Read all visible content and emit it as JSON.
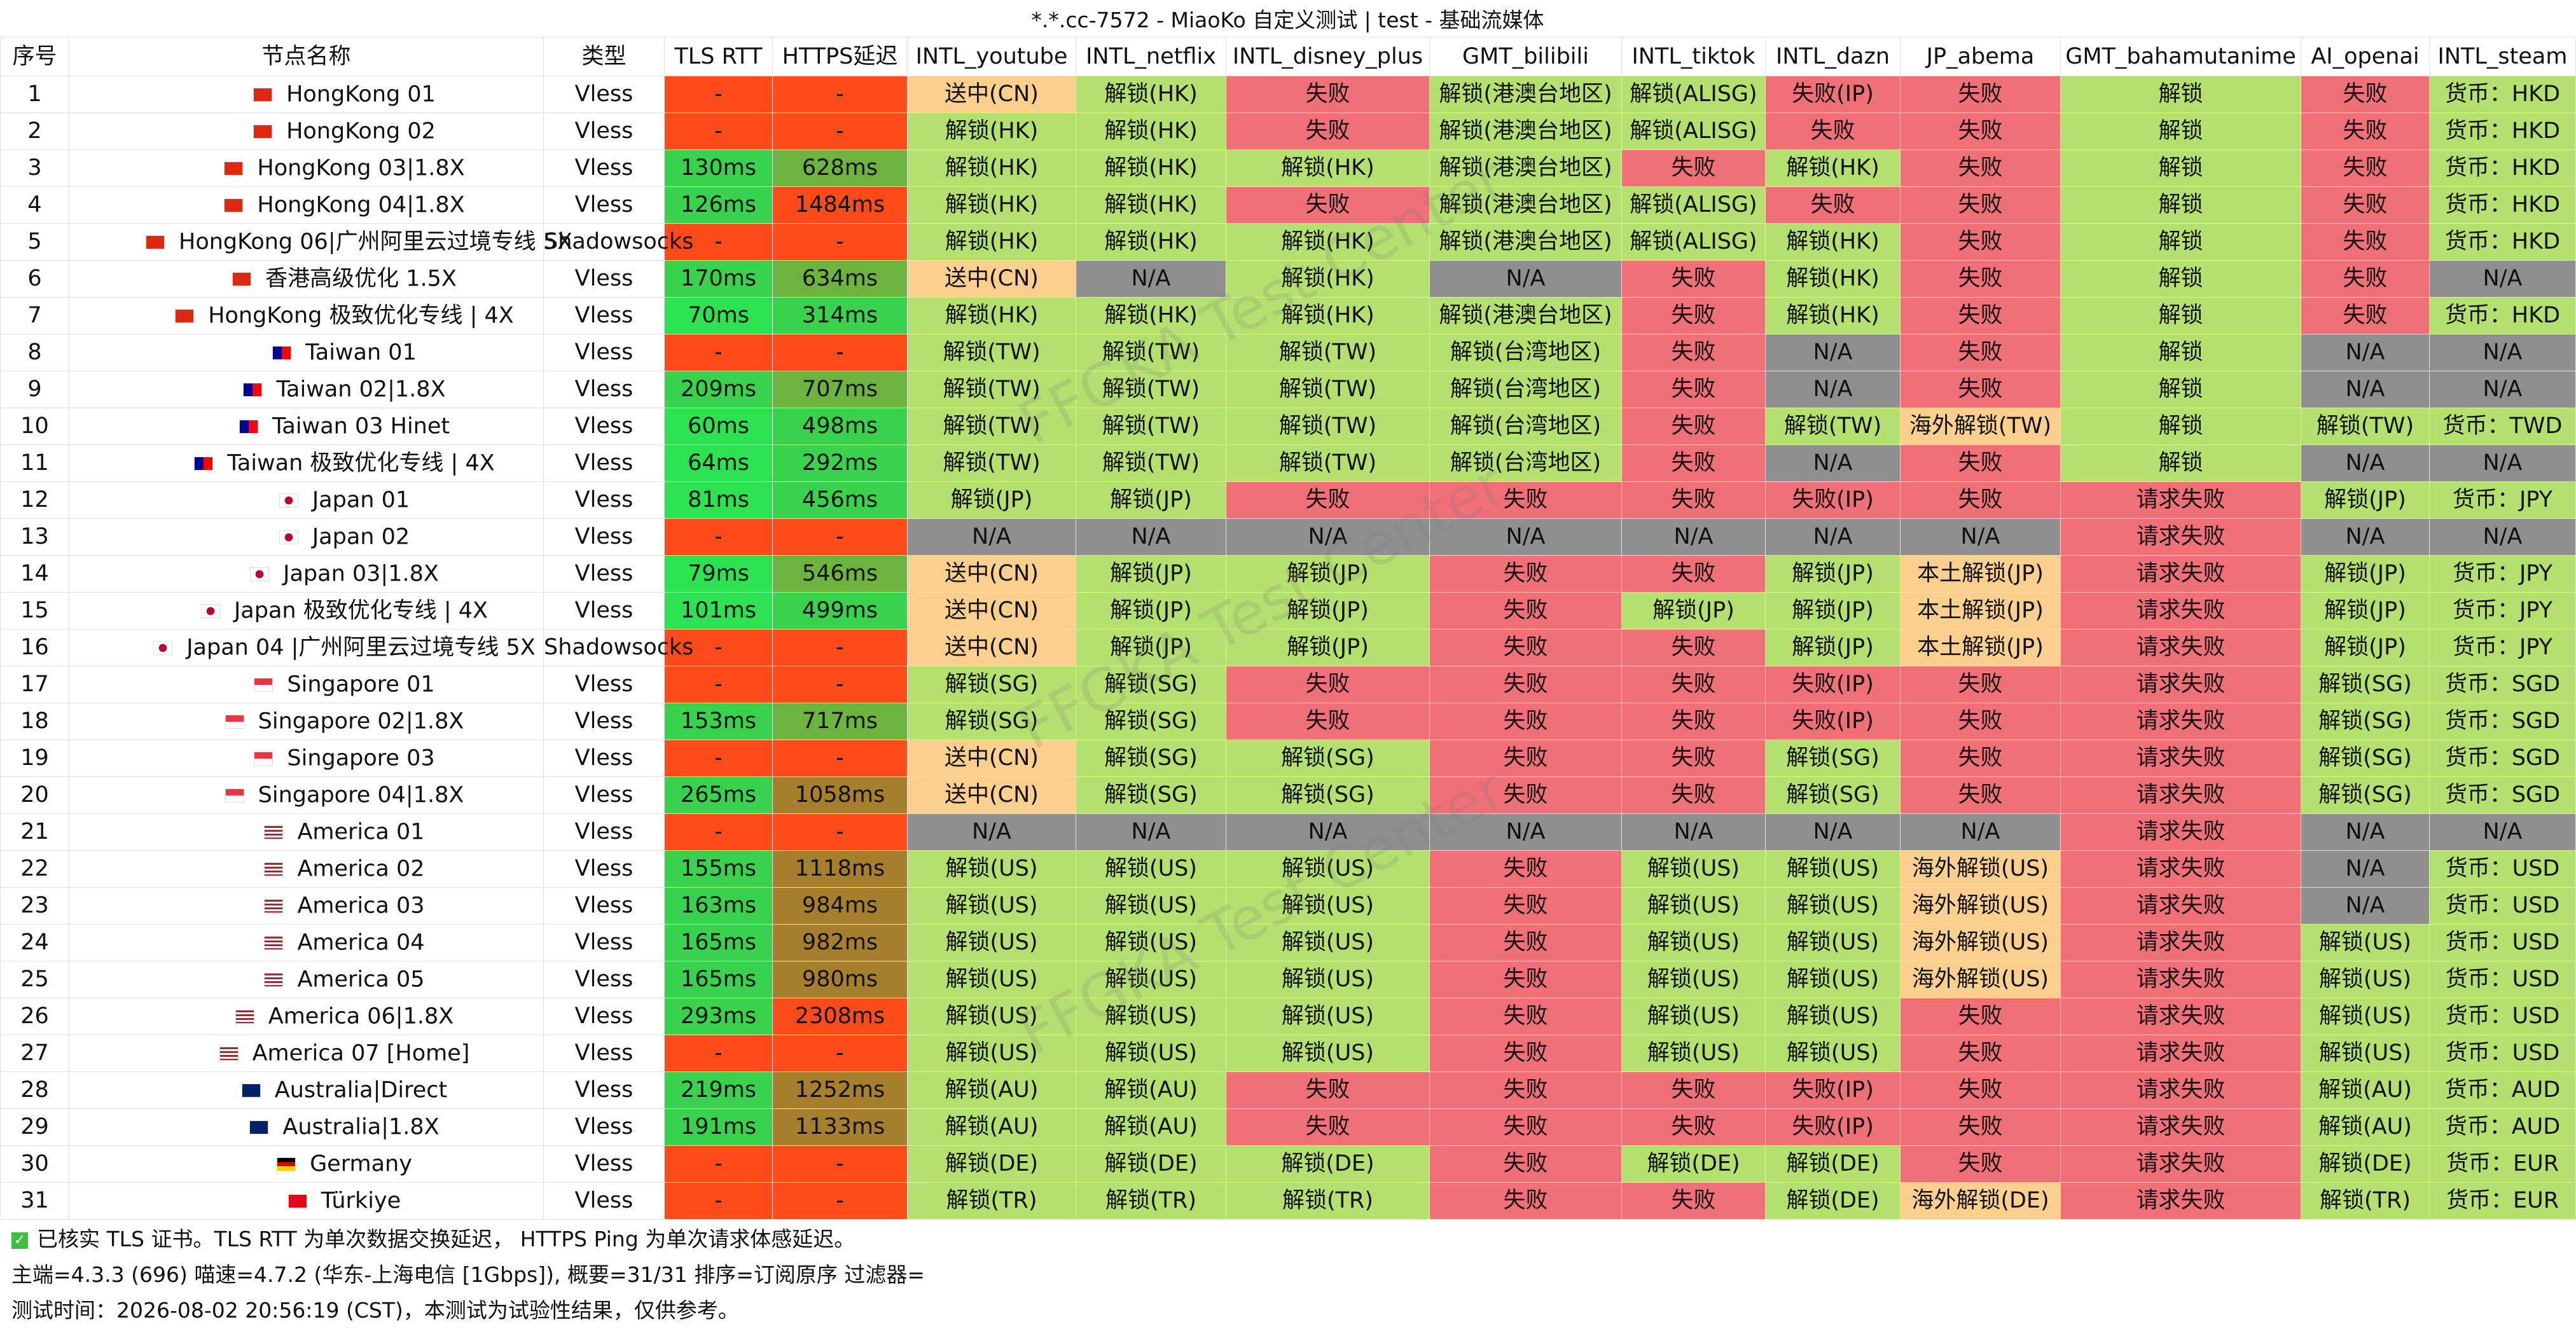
{
  "window": {
    "title": "*.*.cc-7572 - MiaoKo 自定义测试 | test - 基础流媒体"
  },
  "table": {
    "columns": [
      "序号",
      "节点名称",
      "类型",
      "TLS RTT",
      "HTTPS延迟",
      "INTL_youtube",
      "INTL_netflix",
      "INTL_disney_plus",
      "GMT_bilibili",
      "INTL_tiktok",
      "INTL_dazn",
      "JP_abema",
      "GMT_bahamutanime",
      "AI_openai",
      "INTL_steam"
    ],
    "rows": [
      {
        "idx": "1",
        "flag": "hk",
        "name": "HongKong 01",
        "type": "Vless",
        "tls": "-",
        "https": "-",
        "yt": "送中(CN)",
        "nf": "解锁(HK)",
        "dp": "失败",
        "bili": "解锁(港澳台地区)",
        "tt": "解锁(ALISG)",
        "dazn": "失败(IP)",
        "abema": "失败",
        "baha": "解锁",
        "ai": "失败",
        "steam": "货币：HKD"
      },
      {
        "idx": "2",
        "flag": "hk",
        "name": "HongKong 02",
        "type": "Vless",
        "tls": "-",
        "https": "-",
        "yt": "解锁(HK)",
        "nf": "解锁(HK)",
        "dp": "失败",
        "bili": "解锁(港澳台地区)",
        "tt": "解锁(ALISG)",
        "dazn": "失败",
        "abema": "失败",
        "baha": "解锁",
        "ai": "失败",
        "steam": "货币：HKD"
      },
      {
        "idx": "3",
        "flag": "hk",
        "name": "HongKong 03|1.8X",
        "type": "Vless",
        "tls": "130ms",
        "https": "628ms",
        "yt": "解锁(HK)",
        "nf": "解锁(HK)",
        "dp": "解锁(HK)",
        "bili": "解锁(港澳台地区)",
        "tt": "失败",
        "dazn": "解锁(HK)",
        "abema": "失败",
        "baha": "解锁",
        "ai": "失败",
        "steam": "货币：HKD"
      },
      {
        "idx": "4",
        "flag": "hk",
        "name": "HongKong 04|1.8X",
        "type": "Vless",
        "tls": "126ms",
        "https": "1484ms",
        "yt": "解锁(HK)",
        "nf": "解锁(HK)",
        "dp": "失败",
        "bili": "解锁(港澳台地区)",
        "tt": "解锁(ALISG)",
        "dazn": "失败",
        "abema": "失败",
        "baha": "解锁",
        "ai": "失败",
        "steam": "货币：HKD"
      },
      {
        "idx": "5",
        "flag": "hk",
        "name": "HongKong 06|广州阿里云过境专线 5X",
        "type": "Shadowsocks",
        "tls": "-",
        "https": "-",
        "yt": "解锁(HK)",
        "nf": "解锁(HK)",
        "dp": "解锁(HK)",
        "bili": "解锁(港澳台地区)",
        "tt": "解锁(ALISG)",
        "dazn": "解锁(HK)",
        "abema": "失败",
        "baha": "解锁",
        "ai": "失败",
        "steam": "货币：HKD"
      },
      {
        "idx": "6",
        "flag": "hk",
        "name": "香港高级优化 1.5X",
        "type": "Vless",
        "tls": "170ms",
        "https": "634ms",
        "yt": "送中(CN)",
        "nf": "N/A",
        "dp": "解锁(HK)",
        "bili": "N/A",
        "tt": "失败",
        "dazn": "解锁(HK)",
        "abema": "失败",
        "baha": "解锁",
        "ai": "失败",
        "steam": "N/A"
      },
      {
        "idx": "7",
        "flag": "hk",
        "name": "HongKong 极致优化专线 | 4X",
        "type": "Vless",
        "tls": "70ms",
        "https": "314ms",
        "yt": "解锁(HK)",
        "nf": "解锁(HK)",
        "dp": "解锁(HK)",
        "bili": "解锁(港澳台地区)",
        "tt": "失败",
        "dazn": "解锁(HK)",
        "abema": "失败",
        "baha": "解锁",
        "ai": "失败",
        "steam": "货币：HKD"
      },
      {
        "idx": "8",
        "flag": "tw",
        "name": "Taiwan 01",
        "type": "Vless",
        "tls": "-",
        "https": "-",
        "yt": "解锁(TW)",
        "nf": "解锁(TW)",
        "dp": "解锁(TW)",
        "bili": "解锁(台湾地区)",
        "tt": "失败",
        "dazn": "N/A",
        "abema": "失败",
        "baha": "解锁",
        "ai": "N/A",
        "steam": "N/A"
      },
      {
        "idx": "9",
        "flag": "tw",
        "name": "Taiwan 02|1.8X",
        "type": "Vless",
        "tls": "209ms",
        "https": "707ms",
        "yt": "解锁(TW)",
        "nf": "解锁(TW)",
        "dp": "解锁(TW)",
        "bili": "解锁(台湾地区)",
        "tt": "失败",
        "dazn": "N/A",
        "abema": "失败",
        "baha": "解锁",
        "ai": "N/A",
        "steam": "N/A"
      },
      {
        "idx": "10",
        "flag": "tw",
        "name": "Taiwan 03 Hinet",
        "type": "Vless",
        "tls": "60ms",
        "https": "498ms",
        "yt": "解锁(TW)",
        "nf": "解锁(TW)",
        "dp": "解锁(TW)",
        "bili": "解锁(台湾地区)",
        "tt": "失败",
        "dazn": "解锁(TW)",
        "abema": "海外解锁(TW)",
        "baha": "解锁",
        "ai": "解锁(TW)",
        "steam": "货币：TWD"
      },
      {
        "idx": "11",
        "flag": "tw",
        "name": "Taiwan 极致优化专线 | 4X",
        "type": "Vless",
        "tls": "64ms",
        "https": "292ms",
        "yt": "解锁(TW)",
        "nf": "解锁(TW)",
        "dp": "解锁(TW)",
        "bili": "解锁(台湾地区)",
        "tt": "失败",
        "dazn": "N/A",
        "abema": "失败",
        "baha": "解锁",
        "ai": "N/A",
        "steam": "N/A"
      },
      {
        "idx": "12",
        "flag": "jp",
        "name": "Japan 01",
        "type": "Vless",
        "tls": "81ms",
        "https": "456ms",
        "yt": "解锁(JP)",
        "nf": "解锁(JP)",
        "dp": "失败",
        "bili": "失败",
        "tt": "失败",
        "dazn": "失败(IP)",
        "abema": "失败",
        "baha": "请求失败",
        "ai": "解锁(JP)",
        "steam": "货币：JPY"
      },
      {
        "idx": "13",
        "flag": "jp",
        "name": "Japan 02",
        "type": "Vless",
        "tls": "-",
        "https": "-",
        "yt": "N/A",
        "nf": "N/A",
        "dp": "N/A",
        "bili": "N/A",
        "tt": "N/A",
        "dazn": "N/A",
        "abema": "N/A",
        "baha": "请求失败",
        "ai": "N/A",
        "steam": "N/A"
      },
      {
        "idx": "14",
        "flag": "jp",
        "name": "Japan 03|1.8X",
        "type": "Vless",
        "tls": "79ms",
        "https": "546ms",
        "yt": "送中(CN)",
        "nf": "解锁(JP)",
        "dp": "解锁(JP)",
        "bili": "失败",
        "tt": "失败",
        "dazn": "解锁(JP)",
        "abema": "本土解锁(JP)",
        "baha": "请求失败",
        "ai": "解锁(JP)",
        "steam": "货币：JPY"
      },
      {
        "idx": "15",
        "flag": "jp",
        "name": "Japan 极致优化专线 | 4X",
        "type": "Vless",
        "tls": "101ms",
        "https": "499ms",
        "yt": "送中(CN)",
        "nf": "解锁(JP)",
        "dp": "解锁(JP)",
        "bili": "失败",
        "tt": "解锁(JP)",
        "dazn": "解锁(JP)",
        "abema": "本土解锁(JP)",
        "baha": "请求失败",
        "ai": "解锁(JP)",
        "steam": "货币：JPY"
      },
      {
        "idx": "16",
        "flag": "jp",
        "name": "Japan 04 |广州阿里云过境专线 5X",
        "type": "Shadowsocks",
        "tls": "-",
        "https": "-",
        "yt": "送中(CN)",
        "nf": "解锁(JP)",
        "dp": "解锁(JP)",
        "bili": "失败",
        "tt": "失败",
        "dazn": "解锁(JP)",
        "abema": "本土解锁(JP)",
        "baha": "请求失败",
        "ai": "解锁(JP)",
        "steam": "货币：JPY"
      },
      {
        "idx": "17",
        "flag": "sg",
        "name": "Singapore 01",
        "type": "Vless",
        "tls": "-",
        "https": "-",
        "yt": "解锁(SG)",
        "nf": "解锁(SG)",
        "dp": "失败",
        "bili": "失败",
        "tt": "失败",
        "dazn": "失败(IP)",
        "abema": "失败",
        "baha": "请求失败",
        "ai": "解锁(SG)",
        "steam": "货币：SGD"
      },
      {
        "idx": "18",
        "flag": "sg",
        "name": "Singapore 02|1.8X",
        "type": "Vless",
        "tls": "153ms",
        "https": "717ms",
        "yt": "解锁(SG)",
        "nf": "解锁(SG)",
        "dp": "失败",
        "bili": "失败",
        "tt": "失败",
        "dazn": "失败(IP)",
        "abema": "失败",
        "baha": "请求失败",
        "ai": "解锁(SG)",
        "steam": "货币：SGD"
      },
      {
        "idx": "19",
        "flag": "sg",
        "name": "Singapore 03",
        "type": "Vless",
        "tls": "-",
        "https": "-",
        "yt": "送中(CN)",
        "nf": "解锁(SG)",
        "dp": "解锁(SG)",
        "bili": "失败",
        "tt": "失败",
        "dazn": "解锁(SG)",
        "abema": "失败",
        "baha": "请求失败",
        "ai": "解锁(SG)",
        "steam": "货币：SGD"
      },
      {
        "idx": "20",
        "flag": "sg",
        "name": "Singapore 04|1.8X",
        "type": "Vless",
        "tls": "265ms",
        "https": "1058ms",
        "yt": "送中(CN)",
        "nf": "解锁(SG)",
        "dp": "解锁(SG)",
        "bili": "失败",
        "tt": "失败",
        "dazn": "解锁(SG)",
        "abema": "失败",
        "baha": "请求失败",
        "ai": "解锁(SG)",
        "steam": "货币：SGD"
      },
      {
        "idx": "21",
        "flag": "us",
        "name": "America 01",
        "type": "Vless",
        "tls": "-",
        "https": "-",
        "yt": "N/A",
        "nf": "N/A",
        "dp": "N/A",
        "bili": "N/A",
        "tt": "N/A",
        "dazn": "N/A",
        "abema": "N/A",
        "baha": "请求失败",
        "ai": "N/A",
        "steam": "N/A"
      },
      {
        "idx": "22",
        "flag": "us",
        "name": "America 02",
        "type": "Vless",
        "tls": "155ms",
        "https": "1118ms",
        "yt": "解锁(US)",
        "nf": "解锁(US)",
        "dp": "解锁(US)",
        "bili": "失败",
        "tt": "解锁(US)",
        "dazn": "解锁(US)",
        "abema": "海外解锁(US)",
        "baha": "请求失败",
        "ai": "N/A",
        "steam": "货币：USD"
      },
      {
        "idx": "23",
        "flag": "us",
        "name": "America 03",
        "type": "Vless",
        "tls": "163ms",
        "https": "984ms",
        "yt": "解锁(US)",
        "nf": "解锁(US)",
        "dp": "解锁(US)",
        "bili": "失败",
        "tt": "解锁(US)",
        "dazn": "解锁(US)",
        "abema": "海外解锁(US)",
        "baha": "请求失败",
        "ai": "N/A",
        "steam": "货币：USD"
      },
      {
        "idx": "24",
        "flag": "us",
        "name": "America 04",
        "type": "Vless",
        "tls": "165ms",
        "https": "982ms",
        "yt": "解锁(US)",
        "nf": "解锁(US)",
        "dp": "解锁(US)",
        "bili": "失败",
        "tt": "解锁(US)",
        "dazn": "解锁(US)",
        "abema": "海外解锁(US)",
        "baha": "请求失败",
        "ai": "解锁(US)",
        "steam": "货币：USD"
      },
      {
        "idx": "25",
        "flag": "us",
        "name": "America 05",
        "type": "Vless",
        "tls": "165ms",
        "https": "980ms",
        "yt": "解锁(US)",
        "nf": "解锁(US)",
        "dp": "解锁(US)",
        "bili": "失败",
        "tt": "解锁(US)",
        "dazn": "解锁(US)",
        "abema": "海外解锁(US)",
        "baha": "请求失败",
        "ai": "解锁(US)",
        "steam": "货币：USD"
      },
      {
        "idx": "26",
        "flag": "us",
        "name": "America 06|1.8X",
        "type": "Vless",
        "tls": "293ms",
        "https": "2308ms",
        "yt": "解锁(US)",
        "nf": "解锁(US)",
        "dp": "解锁(US)",
        "bili": "失败",
        "tt": "解锁(US)",
        "dazn": "解锁(US)",
        "abema": "失败",
        "baha": "请求失败",
        "ai": "解锁(US)",
        "steam": "货币：USD"
      },
      {
        "idx": "27",
        "flag": "us",
        "name": "America 07 [Home]",
        "type": "Vless",
        "tls": "-",
        "https": "-",
        "yt": "解锁(US)",
        "nf": "解锁(US)",
        "dp": "解锁(US)",
        "bili": "失败",
        "tt": "解锁(US)",
        "dazn": "解锁(US)",
        "abema": "失败",
        "baha": "请求失败",
        "ai": "解锁(US)",
        "steam": "货币：USD"
      },
      {
        "idx": "28",
        "flag": "au",
        "name": "Australia|Direct",
        "type": "Vless",
        "tls": "219ms",
        "https": "1252ms",
        "yt": "解锁(AU)",
        "nf": "解锁(AU)",
        "dp": "失败",
        "bili": "失败",
        "tt": "失败",
        "dazn": "失败(IP)",
        "abema": "失败",
        "baha": "请求失败",
        "ai": "解锁(AU)",
        "steam": "货币：AUD"
      },
      {
        "idx": "29",
        "flag": "au",
        "name": "Australia|1.8X",
        "type": "Vless",
        "tls": "191ms",
        "https": "1133ms",
        "yt": "解锁(AU)",
        "nf": "解锁(AU)",
        "dp": "失败",
        "bili": "失败",
        "tt": "失败",
        "dazn": "失败(IP)",
        "abema": "失败",
        "baha": "请求失败",
        "ai": "解锁(AU)",
        "steam": "货币：AUD"
      },
      {
        "idx": "30",
        "flag": "de",
        "name": "Germany",
        "type": "Vless",
        "tls": "-",
        "https": "-",
        "yt": "解锁(DE)",
        "nf": "解锁(DE)",
        "dp": "解锁(DE)",
        "bili": "失败",
        "tt": "解锁(DE)",
        "dazn": "解锁(DE)",
        "abema": "失败",
        "baha": "请求失败",
        "ai": "解锁(DE)",
        "steam": "货币：EUR"
      },
      {
        "idx": "31",
        "flag": "tr",
        "name": "Türkiye",
        "type": "Vless",
        "tls": "-",
        "https": "-",
        "yt": "解锁(TR)",
        "nf": "解锁(TR)",
        "dp": "解锁(TR)",
        "bili": "失败",
        "tt": "失败",
        "dazn": "解锁(DE)",
        "abema": "海外解锁(DE)",
        "baha": "请求失败",
        "ai": "解锁(TR)",
        "steam": "货币：EUR"
      }
    ]
  },
  "status_colors": {
    "unlock": "#b3e06f",
    "fail": "#f07078",
    "na": "#8f8f8f",
    "warn": "#fbd08f",
    "no_latency": "#ff4a1a",
    "rtt_fast": "#2ce251",
    "https_mid": "#6db33f",
    "https_slow": "#a67f2d"
  },
  "watermark": {
    "text": "FFGKA Test Center"
  },
  "footer": {
    "line1": "已核实 TLS 证书。TLS RTT 为单次数据交换延迟， HTTPS Ping 为单次请求体感延迟。",
    "line2": "主端=4.3.3 (696) 喵速=4.7.2 (华东-上海电信 [1Gbps]), 概要=31/31 排序=订阅原序 过滤器=",
    "line3": "测试时间：2026-08-02 20:56:19 (CST)，本测试为试验性结果，仅供参考。"
  }
}
